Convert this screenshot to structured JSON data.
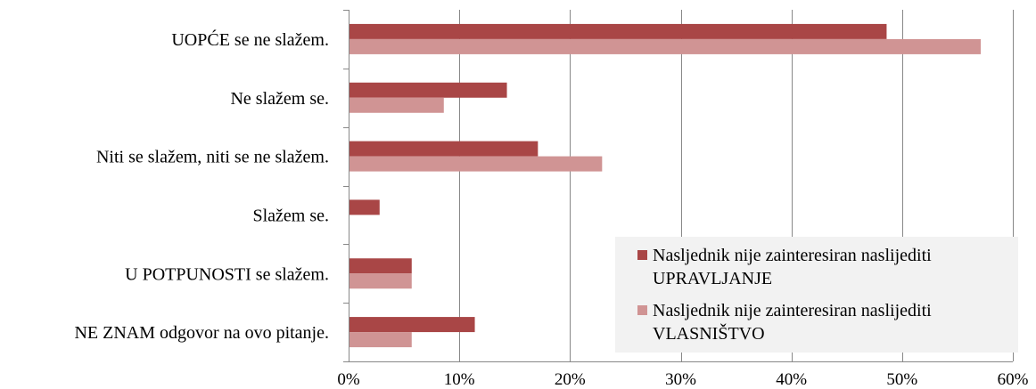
{
  "chart_data": {
    "type": "bar",
    "orientation": "horizontal",
    "title": "",
    "xlabel": "",
    "ylabel": "",
    "categories": [
      "UOPĆE se ne slažem.",
      "Ne slažem se.",
      "Niti se slažem, niti se ne slažem.",
      "Slažem se.",
      "U POTPUNOSTI se slažem.",
      "NE ZNAM odgovor na ovo pitanje."
    ],
    "series": [
      {
        "name": "Nasljednik nije zainteresiran naslijediti UPRAVLJANJE",
        "legend_lines": [
          "Nasljednik nije zainteresiran naslijediti",
          "UPRAVLJANJE"
        ],
        "color": "#A94646",
        "values": [
          48.6,
          14.3,
          17.1,
          2.8,
          5.7,
          11.4
        ]
      },
      {
        "name": "Nasljednik nije zainteresiran naslijediti VLASNIŠTVO",
        "legend_lines": [
          "Nasljednik nije zainteresiran naslijediti",
          "VLASNIŠTVO"
        ],
        "color": "#D09494",
        "values": [
          57.1,
          8.6,
          22.9,
          0,
          5.7,
          5.7
        ]
      }
    ],
    "xlim": [
      0,
      60
    ],
    "xticks": [
      0,
      10,
      20,
      30,
      40,
      50,
      60
    ],
    "xtick_labels": [
      "0%",
      "10%",
      "20%",
      "30%",
      "40%",
      "50%",
      "60%"
    ],
    "grid": true,
    "legend_position": "bottom-right",
    "legend_background": "#F2F2F2",
    "gridline_color": "#888888"
  }
}
